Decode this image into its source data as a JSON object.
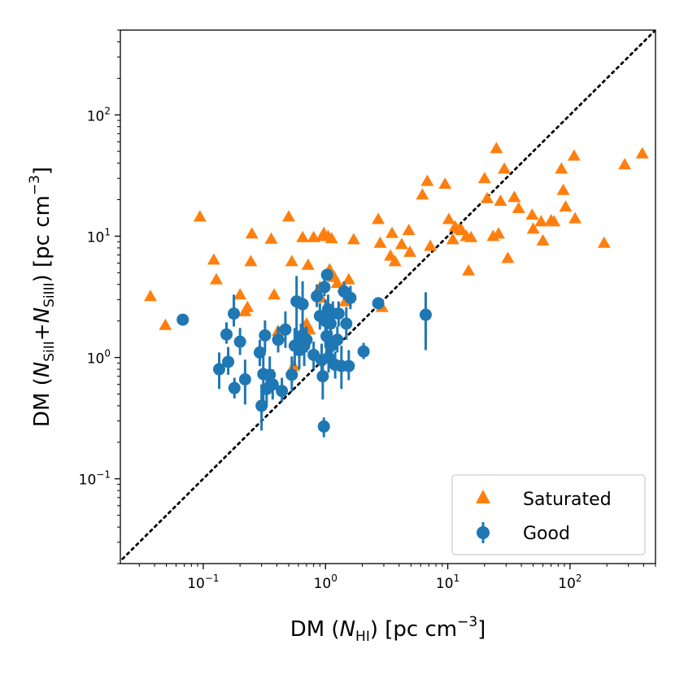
{
  "chart_data": {
    "type": "scatter",
    "xscale": "log",
    "yscale": "log",
    "xlim": [
      0.021,
      500
    ],
    "ylim": [
      0.02,
      500
    ],
    "xlabel": {
      "pre": "DM (",
      "sym": "N",
      "sub": "HI",
      "post": ") [pc cm",
      "sup": "−3",
      "end": "]"
    },
    "ylabel": {
      "pre": "DM (",
      "sym1": "N",
      "sub1": "SiII",
      "plus": "+",
      "sym2": "N",
      "sub2": "SiIII",
      "post": ") [pc cm",
      "sup": "−3",
      "end": "]"
    },
    "x_ticks": [
      {
        "value": 0.1,
        "base": "10",
        "exp": "−1"
      },
      {
        "value": 1,
        "base": "10",
        "exp": "0"
      },
      {
        "value": 10,
        "base": "10",
        "exp": "1"
      },
      {
        "value": 100,
        "base": "10",
        "exp": "2"
      }
    ],
    "y_ticks": [
      {
        "value": 0.1,
        "base": "10",
        "exp": "−1"
      },
      {
        "value": 1,
        "base": "10",
        "exp": "0"
      },
      {
        "value": 10,
        "base": "10",
        "exp": "1"
      },
      {
        "value": 100,
        "base": "10",
        "exp": "2"
      }
    ],
    "reference_line": {
      "style": "dotted",
      "color": "#000000",
      "relation": "y = x"
    },
    "legend": {
      "location": "lower-right",
      "entries": [
        "Saturated",
        "Good"
      ]
    },
    "series": [
      {
        "name": "Saturated",
        "marker": "triangle",
        "color": "#ff7f0e",
        "points": [
          [
            0.037,
            3.2
          ],
          [
            0.049,
            1.85
          ],
          [
            0.094,
            14.5
          ],
          [
            0.122,
            6.4
          ],
          [
            0.128,
            4.4
          ],
          [
            0.2,
            3.3
          ],
          [
            0.22,
            2.4
          ],
          [
            0.23,
            2.6
          ],
          [
            0.245,
            6.2
          ],
          [
            0.25,
            10.5
          ],
          [
            0.36,
            9.5
          ],
          [
            0.38,
            3.3
          ],
          [
            0.41,
            1.65
          ],
          [
            0.5,
            14.5
          ],
          [
            0.53,
            6.2
          ],
          [
            0.55,
            0.85
          ],
          [
            0.62,
            1.5
          ],
          [
            0.65,
            9.8
          ],
          [
            0.7,
            1.9
          ],
          [
            0.72,
            5.8
          ],
          [
            0.74,
            1.7
          ],
          [
            0.8,
            9.8
          ],
          [
            0.9,
            3.8
          ],
          [
            0.92,
            3.1
          ],
          [
            0.94,
            10.0
          ],
          [
            0.97,
            10.6
          ],
          [
            1.05,
            10.0
          ],
          [
            1.08,
            5.3
          ],
          [
            1.12,
            9.6
          ],
          [
            1.18,
            4.6
          ],
          [
            1.25,
            4.1
          ],
          [
            1.4,
            3.8
          ],
          [
            1.45,
            2.9
          ],
          [
            1.55,
            4.4
          ],
          [
            1.7,
            9.4
          ],
          [
            2.7,
            13.8
          ],
          [
            2.8,
            8.8
          ],
          [
            2.9,
            2.6
          ],
          [
            3.4,
            6.9
          ],
          [
            3.5,
            10.6
          ],
          [
            3.7,
            6.2
          ],
          [
            4.2,
            8.6
          ],
          [
            4.8,
            11.2
          ],
          [
            4.9,
            7.4
          ],
          [
            6.2,
            22.0
          ],
          [
            6.8,
            28.5
          ],
          [
            7.2,
            8.3
          ],
          [
            9.5,
            27.0
          ],
          [
            10.2,
            13.8
          ],
          [
            11.0,
            9.4
          ],
          [
            11.5,
            12.0
          ],
          [
            12.5,
            11.5
          ],
          [
            13.0,
            11.2
          ],
          [
            14.2,
            10.0
          ],
          [
            14.8,
            5.2
          ],
          [
            15.5,
            9.8
          ],
          [
            20.0,
            30.0
          ],
          [
            21.0,
            20.5
          ],
          [
            23.5,
            10.0
          ],
          [
            25.0,
            53.0
          ],
          [
            26.0,
            10.5
          ],
          [
            27.0,
            19.5
          ],
          [
            29.0,
            36.0
          ],
          [
            31.0,
            6.6
          ],
          [
            35.0,
            21.0
          ],
          [
            38.0,
            17.0
          ],
          [
            49.0,
            15.0
          ],
          [
            50.0,
            11.5
          ],
          [
            58.0,
            13.2
          ],
          [
            60.0,
            9.2
          ],
          [
            70.0,
            13.5
          ],
          [
            74.0,
            13.2
          ],
          [
            85.0,
            36.0
          ],
          [
            88.0,
            24.0
          ],
          [
            92.0,
            17.5
          ],
          [
            108.0,
            46.0
          ],
          [
            110.0,
            14.0
          ],
          [
            190.0,
            8.8
          ],
          [
            280.0,
            39.0
          ],
          [
            390.0,
            48.0
          ]
        ]
      },
      {
        "name": "Good",
        "marker": "circle",
        "color": "#1f77b4",
        "points": [
          [
            0.068,
            2.05,
            0.1,
            0.1
          ],
          [
            0.135,
            0.8,
            0.25,
            0.3
          ],
          [
            0.155,
            1.55,
            0.25,
            0.4
          ],
          [
            0.16,
            0.92,
            0.2,
            0.3
          ],
          [
            0.178,
            2.3,
            0.5,
            1.0
          ],
          [
            0.18,
            0.56,
            0.1,
            0.12
          ],
          [
            0.2,
            1.35,
            0.3,
            0.4
          ],
          [
            0.22,
            0.66,
            0.25,
            0.3
          ],
          [
            0.29,
            1.1,
            0.25,
            0.3
          ],
          [
            0.3,
            0.4,
            0.15,
            0.2
          ],
          [
            0.31,
            0.73,
            0.35,
            0.45
          ],
          [
            0.32,
            1.52,
            0.4,
            0.5
          ],
          [
            0.33,
            0.55,
            0.15,
            0.2
          ],
          [
            0.35,
            0.72,
            0.2,
            0.3
          ],
          [
            0.37,
            0.6,
            0.15,
            0.2
          ],
          [
            0.41,
            1.4,
            0.3,
            0.4
          ],
          [
            0.44,
            0.53,
            0.1,
            0.15
          ],
          [
            0.47,
            1.7,
            0.5,
            0.7
          ],
          [
            0.53,
            0.72,
            0.2,
            0.3
          ],
          [
            0.56,
            1.25,
            0.4,
            0.5
          ],
          [
            0.58,
            2.9,
            1.3,
            1.8
          ],
          [
            0.61,
            1.15,
            0.35,
            0.4
          ],
          [
            0.63,
            1.5,
            0.3,
            0.4
          ],
          [
            0.65,
            2.75,
            1.1,
            1.5
          ],
          [
            0.67,
            1.25,
            0.4,
            0.5
          ],
          [
            0.7,
            1.4,
            0.3,
            0.4
          ],
          [
            0.8,
            1.05,
            0.25,
            0.3
          ],
          [
            0.85,
            3.2,
            0.6,
            0.8
          ],
          [
            0.9,
            2.2,
            0.5,
            0.6
          ],
          [
            0.93,
            0.95,
            0.3,
            0.35
          ],
          [
            0.95,
            0.7,
            0.25,
            0.3
          ],
          [
            0.97,
            0.27,
            0.05,
            0.05
          ],
          [
            0.98,
            3.8,
            0.6,
            0.8
          ],
          [
            1.0,
            2.0,
            0.8,
            1.0
          ],
          [
            1.02,
            1.5,
            0.4,
            0.5
          ],
          [
            1.03,
            4.8,
            0.5,
            0.6
          ],
          [
            1.05,
            2.5,
            0.6,
            0.8
          ],
          [
            1.06,
            1.0,
            0.25,
            0.3
          ],
          [
            1.1,
            1.9,
            0.5,
            0.6
          ],
          [
            1.12,
            1.25,
            0.3,
            0.4
          ],
          [
            1.15,
            2.3,
            0.5,
            0.6
          ],
          [
            1.2,
            0.87,
            0.2,
            0.25
          ],
          [
            1.25,
            1.4,
            0.3,
            0.4
          ],
          [
            1.28,
            2.3,
            0.5,
            0.6
          ],
          [
            1.35,
            0.85,
            0.3,
            0.4
          ],
          [
            1.42,
            3.5,
            0.5,
            0.7
          ],
          [
            1.48,
            1.9,
            0.5,
            0.7
          ],
          [
            1.55,
            0.85,
            0.2,
            0.3
          ],
          [
            1.6,
            3.1,
            0.6,
            0.8
          ],
          [
            2.05,
            1.12,
            0.15,
            0.2
          ],
          [
            2.7,
            2.8,
            0.2,
            0.3
          ],
          [
            6.6,
            2.25,
            1.1,
            1.2
          ]
        ]
      }
    ]
  }
}
